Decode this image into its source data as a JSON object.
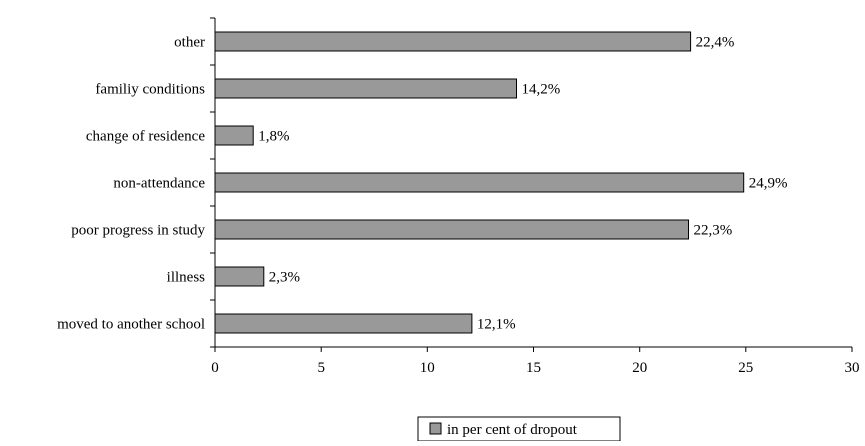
{
  "chart_data": {
    "type": "bar",
    "orientation": "horizontal",
    "categories": [
      "other",
      "familiy conditions",
      "change of residence",
      "non-attendance",
      "poor progress in study",
      "illness",
      "moved to another school"
    ],
    "series": [
      {
        "name": "in per cent of dropout",
        "values": [
          22.4,
          14.2,
          1.8,
          24.9,
          22.3,
          2.3,
          12.1
        ],
        "labels": [
          "22,4%",
          "14,2%",
          "1,8%",
          "24,9%",
          "22,3%",
          "2,3%",
          "12,1%"
        ]
      }
    ],
    "xlim": [
      0,
      30
    ],
    "x_ticks": [
      0,
      5,
      10,
      15,
      20,
      25,
      30
    ],
    "x_tick_labels": [
      "0",
      "5",
      "10",
      "15",
      "20",
      "25",
      "30"
    ],
    "grid": false,
    "legend_position": "bottom-center",
    "colors": {
      "bar_fill": "#999999",
      "bar_stroke": "#000000",
      "axis": "#000000"
    }
  }
}
